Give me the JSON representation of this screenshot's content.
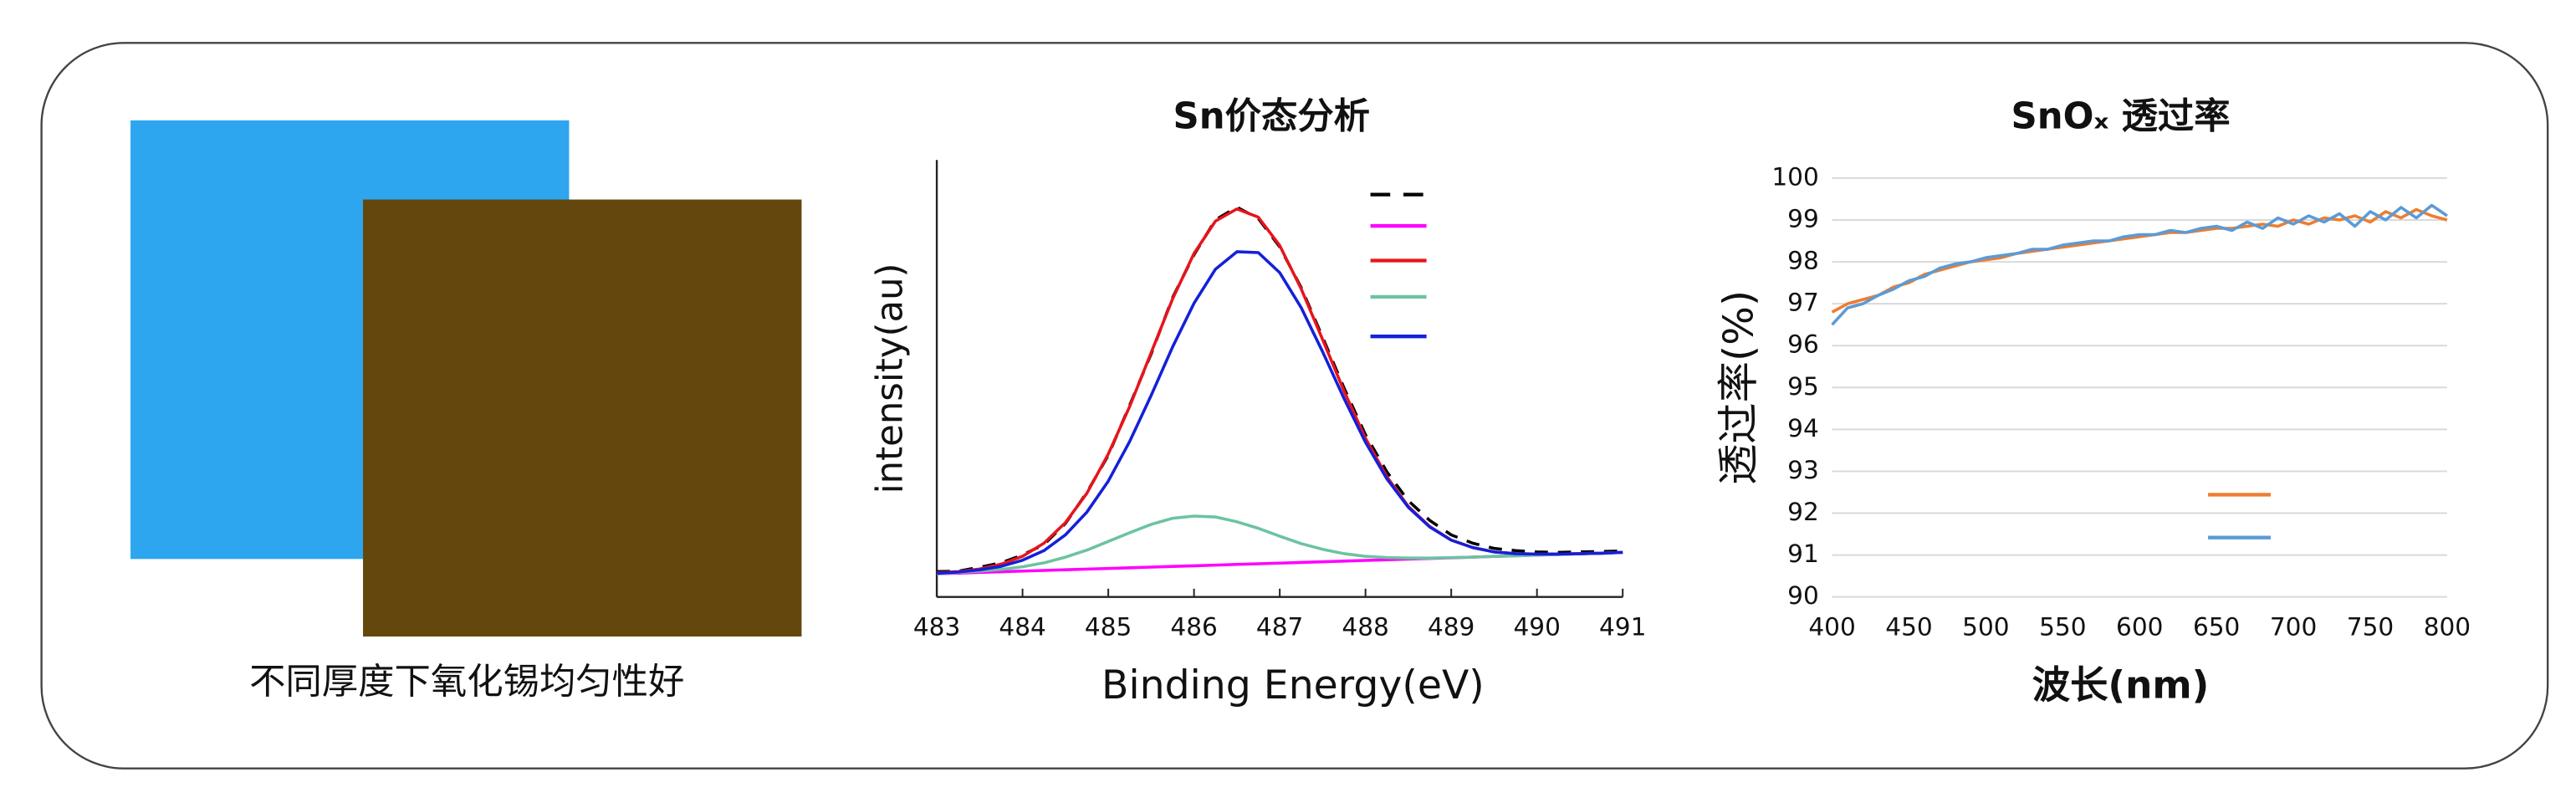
{
  "caption": "不同厚度下氧化锡均匀性好",
  "chart_data": [
    {
      "type": "line",
      "title": "Sn价态分析",
      "xlabel": "Binding Energy(eV)",
      "ylabel": "intensity(au)",
      "x": [
        483,
        483.25,
        483.5,
        483.75,
        484,
        484.25,
        484.5,
        484.75,
        485,
        485.25,
        485.5,
        485.75,
        486,
        486.25,
        486.5,
        486.75,
        487,
        487.25,
        487.5,
        487.75,
        488,
        488.25,
        488.5,
        488.75,
        489,
        489.25,
        489.5,
        489.75,
        490,
        490.25,
        490.5,
        490.75,
        491
      ],
      "xlim": [
        483,
        491
      ],
      "xticks": [
        483,
        484,
        485,
        486,
        487,
        488,
        489,
        490,
        491
      ],
      "ylim": [
        0,
        100
      ],
      "grid": false,
      "series": [
        {
          "color": "#000000",
          "dash": true,
          "values": [
            5.8,
            5.9,
            6.8,
            7.8,
            9.6,
            12.0,
            16.8,
            23.9,
            32.4,
            43.9,
            55.6,
            68.5,
            78.3,
            86.3,
            89.2,
            86.6,
            80.1,
            70.8,
            59.4,
            47.8,
            37.1,
            28.6,
            22.0,
            17.5,
            14.2,
            12.3,
            11.1,
            10.6,
            10.3,
            10.2,
            10.3,
            10.4,
            10.5
          ]
        },
        {
          "color": "#ff00ff",
          "values": [
            5.3,
            5.45,
            5.61,
            5.76,
            5.91,
            6.06,
            6.22,
            6.37,
            6.52,
            6.67,
            6.83,
            6.98,
            7.13,
            7.28,
            7.44,
            7.59,
            7.74,
            7.89,
            8.05,
            8.2,
            8.35,
            8.5,
            8.66,
            8.81,
            8.96,
            9.11,
            9.27,
            9.42,
            9.57,
            9.72,
            9.88,
            10.03,
            10.18
          ]
        },
        {
          "color": "#e8141c",
          "values": [
            5.5,
            5.8,
            6.4,
            7.5,
            9.3,
            12.3,
            17.0,
            23.7,
            32.7,
            43.6,
            55.9,
            68.2,
            78.6,
            86.0,
            88.8,
            86.9,
            80.4,
            70.5,
            58.9,
            47.1,
            36.3,
            27.5,
            20.7,
            16.1,
            13.0,
            11.3,
            10.3,
            9.9,
            9.8,
            9.8,
            9.9,
            10.0,
            10.2
          ]
        },
        {
          "color": "#6cc3a0",
          "values": [
            5.3,
            5.6,
            5.9,
            6.3,
            6.9,
            7.8,
            9.1,
            10.7,
            12.7,
            14.7,
            16.6,
            18.0,
            18.5,
            18.3,
            17.2,
            15.7,
            13.9,
            12.2,
            10.9,
            9.9,
            9.3,
            9.0,
            8.9,
            8.9,
            9.0,
            9.1,
            9.3,
            9.4,
            9.6,
            9.7,
            9.9,
            10.0,
            10.2
          ]
        },
        {
          "color": "#1420d8",
          "values": [
            5.4,
            5.7,
            6.2,
            7.0,
            8.4,
            10.6,
            14.2,
            19.4,
            26.5,
            35.6,
            46.1,
            57.2,
            67.2,
            75.0,
            79.0,
            78.8,
            74.2,
            66.2,
            56.1,
            45.4,
            35.4,
            27.0,
            20.5,
            16.0,
            13.0,
            11.3,
            10.3,
            9.9,
            9.8,
            9.8,
            9.9,
            10.0,
            10.2
          ]
        }
      ]
    },
    {
      "type": "line",
      "title": "SnOₓ 透过率",
      "xlabel": "波长(nm)",
      "ylabel": "透过率(%)",
      "x": [
        400,
        410,
        420,
        430,
        440,
        450,
        460,
        470,
        480,
        490,
        500,
        510,
        520,
        530,
        540,
        550,
        560,
        570,
        580,
        590,
        600,
        610,
        620,
        630,
        640,
        650,
        660,
        670,
        680,
        690,
        700,
        710,
        720,
        730,
        740,
        750,
        760,
        770,
        780,
        790,
        800
      ],
      "xlim": [
        400,
        800
      ],
      "xticks": [
        400,
        450,
        500,
        550,
        600,
        650,
        700,
        750,
        800
      ],
      "ylim": [
        90,
        100
      ],
      "yticks": [
        90,
        91,
        92,
        93,
        94,
        95,
        96,
        97,
        98,
        99,
        100
      ],
      "grid": true,
      "series": [
        {
          "color": "#ed7d31",
          "values": [
            96.8,
            97.0,
            97.1,
            97.2,
            97.4,
            97.5,
            97.7,
            97.8,
            97.9,
            98.0,
            98.05,
            98.1,
            98.2,
            98.25,
            98.3,
            98.35,
            98.4,
            98.45,
            98.5,
            98.55,
            98.6,
            98.65,
            98.7,
            98.7,
            98.75,
            98.8,
            98.8,
            98.85,
            98.9,
            98.85,
            99.0,
            98.9,
            99.05,
            99.0,
            99.1,
            98.95,
            99.2,
            99.05,
            99.25,
            99.1,
            99.0
          ]
        },
        {
          "color": "#5b9bd5",
          "values": [
            96.5,
            96.9,
            97.0,
            97.2,
            97.35,
            97.55,
            97.65,
            97.85,
            97.95,
            98.0,
            98.1,
            98.15,
            98.2,
            98.3,
            98.3,
            98.4,
            98.45,
            98.5,
            98.5,
            98.6,
            98.65,
            98.65,
            98.75,
            98.7,
            98.8,
            98.85,
            98.75,
            98.95,
            98.8,
            99.05,
            98.9,
            99.1,
            98.95,
            99.15,
            98.85,
            99.2,
            99.0,
            99.3,
            99.05,
            99.35,
            99.1
          ]
        }
      ]
    }
  ]
}
